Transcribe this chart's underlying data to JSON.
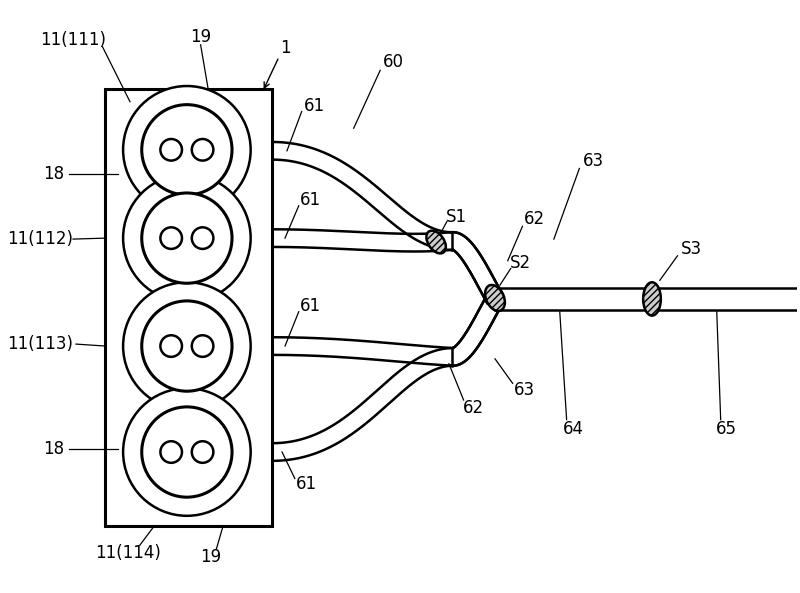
{
  "bg_color": "#ffffff",
  "line_color": "#000000",
  "labels": {
    "11_111": "11(111)",
    "19_top": "19",
    "1": "1",
    "60": "60",
    "61_top": "61",
    "61_mid1": "61",
    "61_mid2": "61",
    "61_bot": "61",
    "S1": "S1",
    "S2": "S2",
    "S3": "S3",
    "62_top": "62",
    "62_bot": "62",
    "63_top": "63",
    "63_bot": "63",
    "18_top": "18",
    "18_bot": "18",
    "11_112": "11(112)",
    "11_113": "11(113)",
    "11_114": "11(114)",
    "19_bot": "19",
    "64": "64",
    "65": "65"
  },
  "figsize": [
    8.0,
    5.93
  ],
  "dpi": 100
}
